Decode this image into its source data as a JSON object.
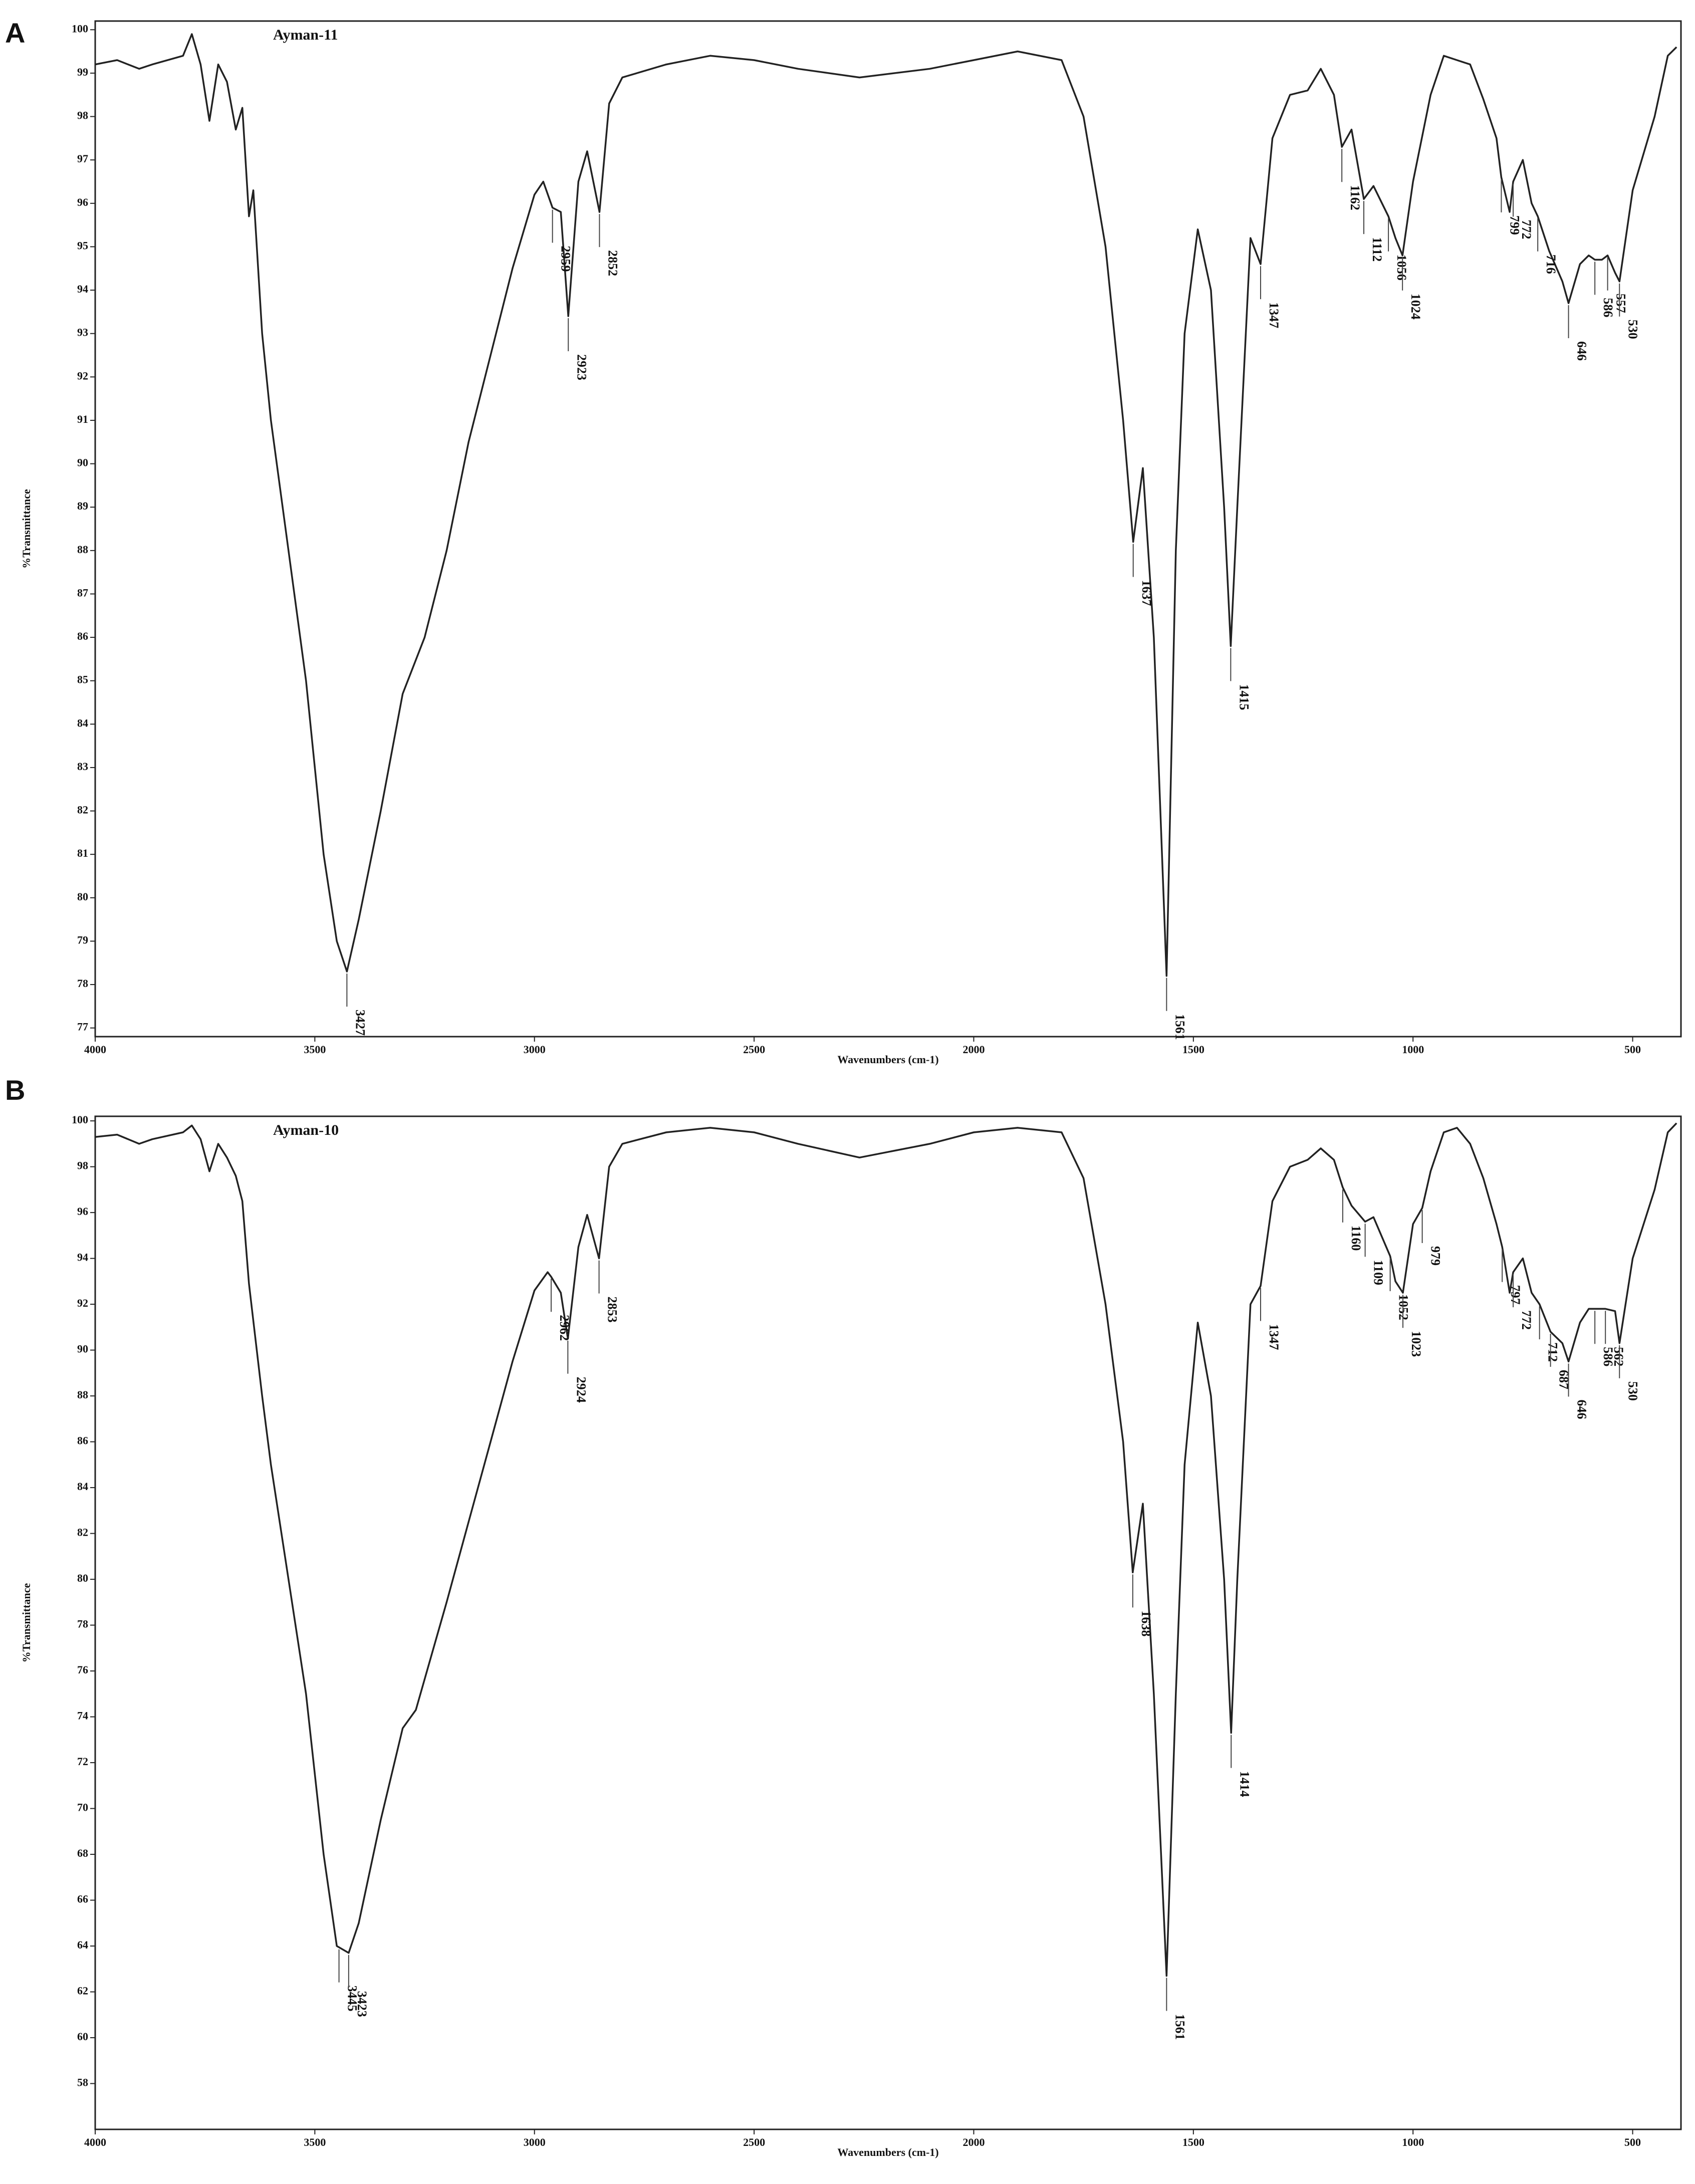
{
  "chart_data": [
    {
      "type": "line",
      "panel_label": "A",
      "title": "Ayman-11",
      "x_label": "Wavenumbers (cm-1)",
      "y_label": "%Transmittance",
      "xlim": [
        4000,
        390
      ],
      "xticks": [
        4000,
        3500,
        3000,
        2500,
        2000,
        1500,
        1000,
        500
      ],
      "ylim": [
        76.8,
        100.2
      ],
      "yticks": [
        77,
        78,
        79,
        80,
        81,
        82,
        83,
        84,
        85,
        86,
        87,
        88,
        89,
        90,
        91,
        92,
        93,
        94,
        95,
        96,
        97,
        98,
        99,
        100
      ],
      "color": "#222222",
      "x": [
        4000,
        3950,
        3900,
        3870,
        3800,
        3780,
        3760,
        3740,
        3720,
        3700,
        3680,
        3665,
        3650,
        3640,
        3620,
        3600,
        3560,
        3520,
        3480,
        3450,
        3427,
        3400,
        3350,
        3300,
        3250,
        3200,
        3150,
        3100,
        3050,
        3000,
        2980,
        2959,
        2940,
        2923,
        2900,
        2880,
        2852,
        2830,
        2800,
        2700,
        2600,
        2500,
        2400,
        2260,
        2100,
        2000,
        1900,
        1800,
        1750,
        1700,
        1660,
        1637,
        1615,
        1590,
        1561,
        1540,
        1520,
        1490,
        1460,
        1430,
        1415,
        1400,
        1370,
        1347,
        1320,
        1280,
        1240,
        1210,
        1180,
        1162,
        1140,
        1112,
        1090,
        1056,
        1040,
        1024,
        1000,
        960,
        930,
        900,
        870,
        840,
        810,
        799,
        780,
        772,
        750,
        730,
        716,
        690,
        660,
        646,
        620,
        600,
        586,
        570,
        557,
        540,
        530,
        500,
        450,
        420,
        400
      ],
      "values": [
        99.2,
        99.3,
        99.1,
        99.2,
        99.4,
        99.9,
        99.2,
        97.9,
        99.2,
        98.8,
        97.7,
        98.2,
        95.7,
        96.3,
        93,
        91,
        88,
        85,
        81,
        79,
        78.3,
        79.5,
        82,
        84.7,
        86,
        88,
        90.5,
        92.5,
        94.5,
        96.2,
        96.5,
        95.9,
        95.8,
        93.4,
        96.5,
        97.2,
        95.8,
        98.3,
        98.9,
        99.2,
        99.4,
        99.3,
        99.1,
        98.9,
        99.1,
        99.3,
        99.5,
        99.3,
        98,
        95,
        91,
        88.2,
        89.9,
        86,
        78.2,
        88,
        93,
        95.4,
        94,
        89,
        85.8,
        89,
        95.2,
        94.6,
        97.5,
        98.5,
        98.6,
        99.1,
        98.5,
        97.3,
        97.7,
        96.1,
        96.4,
        95.7,
        95.2,
        94.8,
        96.5,
        98.5,
        99.4,
        99.3,
        99.2,
        98.4,
        97.5,
        96.6,
        95.8,
        96.5,
        97,
        96,
        95.7,
        94.9,
        94.2,
        93.7,
        94.6,
        94.8,
        94.7,
        94.7,
        94.8,
        94.4,
        94.2,
        96.3,
        98,
        99.4,
        99.6
      ],
      "peaks": [
        3427,
        2959,
        2923,
        2852,
        1637,
        1561,
        1415,
        1347,
        1162,
        1112,
        1056,
        1024,
        799,
        772,
        716,
        646,
        586,
        557,
        530
      ]
    },
    {
      "type": "line",
      "panel_label": "B",
      "title": "Ayman-10",
      "x_label": "Wavenumbers (cm-1)",
      "y_label": "%Transmittance",
      "xlim": [
        4000,
        390
      ],
      "xticks": [
        4000,
        3500,
        3000,
        2500,
        2000,
        1500,
        1000,
        500
      ],
      "ylim": [
        56,
        100.2
      ],
      "yticks": [
        58,
        60,
        62,
        64,
        66,
        68,
        70,
        72,
        74,
        76,
        78,
        80,
        82,
        84,
        86,
        88,
        90,
        92,
        94,
        96,
        98,
        100
      ],
      "color": "#222222",
      "x": [
        4000,
        3950,
        3900,
        3870,
        3800,
        3780,
        3760,
        3740,
        3720,
        3700,
        3680,
        3665,
        3650,
        3620,
        3600,
        3560,
        3520,
        3480,
        3450,
        3423,
        3400,
        3350,
        3300,
        3270,
        3200,
        3150,
        3100,
        3050,
        3000,
        2970,
        2962,
        2940,
        2924,
        2900,
        2880,
        2853,
        2830,
        2800,
        2700,
        2600,
        2500,
        2400,
        2260,
        2100,
        2000,
        1900,
        1800,
        1750,
        1700,
        1660,
        1638,
        1615,
        1590,
        1561,
        1540,
        1520,
        1490,
        1460,
        1430,
        1414,
        1400,
        1370,
        1347,
        1320,
        1280,
        1240,
        1210,
        1180,
        1160,
        1140,
        1109,
        1090,
        1052,
        1040,
        1023,
        1000,
        979,
        960,
        930,
        900,
        870,
        840,
        810,
        797,
        780,
        772,
        750,
        730,
        712,
        687,
        660,
        646,
        620,
        600,
        586,
        570,
        562,
        540,
        530,
        500,
        450,
        420,
        400
      ],
      "values": [
        99.3,
        99.4,
        99,
        99.2,
        99.5,
        99.8,
        99.2,
        97.8,
        99,
        98.4,
        97.6,
        96.5,
        92.9,
        88,
        85,
        80,
        75,
        68,
        64,
        63.7,
        65,
        69.5,
        73.5,
        74.3,
        79,
        82.5,
        86,
        89.5,
        92.6,
        93.4,
        93.2,
        92.5,
        90.5,
        94.5,
        95.9,
        94,
        98,
        99,
        99.5,
        99.7,
        99.5,
        99,
        98.4,
        99,
        99.5,
        99.7,
        99.5,
        97.5,
        92,
        86,
        80.3,
        83.3,
        75,
        62.7,
        75,
        85,
        91.2,
        88,
        80,
        73.3,
        80,
        92,
        92.8,
        96.5,
        98,
        98.3,
        98.8,
        98.3,
        97.1,
        96.3,
        95.6,
        95.8,
        94.1,
        93,
        92.5,
        95.5,
        96.2,
        97.8,
        99.5,
        99.7,
        99,
        97.5,
        95.5,
        94.5,
        92.5,
        93.4,
        94,
        92.5,
        92,
        90.8,
        90.3,
        89.5,
        91.2,
        91.8,
        91.8,
        91.8,
        91.8,
        91.7,
        90.3,
        94,
        97,
        99.5,
        99.9
      ],
      "peaks": [
        3445,
        3423,
        2962,
        2924,
        2853,
        1638,
        1561,
        1414,
        1347,
        1160,
        1109,
        1052,
        1023,
        979,
        797,
        772,
        712,
        687,
        646,
        586,
        562,
        530
      ]
    }
  ]
}
